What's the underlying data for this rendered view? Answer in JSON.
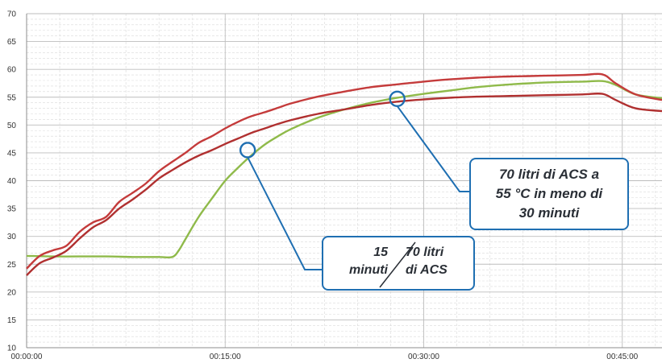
{
  "chart_data": {
    "type": "line",
    "title": "",
    "xlabel": "",
    "ylabel": "",
    "x_unit": "minutes",
    "xlim": [
      0,
      48
    ],
    "ylim": [
      10,
      70
    ],
    "yticks": [
      "10",
      "15",
      "20",
      "25",
      "30",
      "35",
      "40",
      "45",
      "50",
      "55",
      "60",
      "65",
      "70"
    ],
    "xticks": [
      {
        "label": "00:00:00",
        "value": 0
      },
      {
        "label": "00:15:00",
        "value": 15
      },
      {
        "label": "00:30:00",
        "value": 30
      },
      {
        "label": "00:45:00",
        "value": 45
      }
    ],
    "grid": true,
    "series": [
      {
        "color": "#c43b3b",
        "x": [
          0,
          1,
          2,
          3,
          4,
          5,
          6,
          7,
          8,
          9,
          10,
          11,
          12,
          13,
          14,
          15,
          16,
          17,
          18,
          19,
          20,
          22,
          24,
          26,
          28,
          30,
          32,
          34,
          36,
          38,
          40,
          42,
          43.5,
          44.5,
          46,
          48
        ],
        "y": [
          24.2,
          26.5,
          27.5,
          28.3,
          30.8,
          32.5,
          33.5,
          36.2,
          37.8,
          39.5,
          41.7,
          43.4,
          45,
          46.8,
          48,
          49.4,
          50.6,
          51.6,
          52.3,
          53.1,
          53.9,
          55.1,
          56,
          56.8,
          57.3,
          57.8,
          58.2,
          58.5,
          58.7,
          58.8,
          58.9,
          59.0,
          59.1,
          57.5,
          55.5,
          54.5
        ]
      },
      {
        "color": "#b03030",
        "x": [
          0,
          1,
          2,
          3,
          4,
          5,
          6,
          7,
          8,
          9,
          10,
          11,
          12,
          13,
          14,
          15,
          16,
          17,
          18,
          19,
          20,
          22,
          24,
          26,
          28,
          30,
          32,
          34,
          36,
          38,
          40,
          42,
          43.5,
          44.5,
          46,
          48
        ],
        "y": [
          23.0,
          25.2,
          26.2,
          27.4,
          29.6,
          31.6,
          32.9,
          35.0,
          36.6,
          38.4,
          40.4,
          41.9,
          43.3,
          44.5,
          45.5,
          46.6,
          47.6,
          48.6,
          49.4,
          50.2,
          50.9,
          52.0,
          52.8,
          53.6,
          54.2,
          54.6,
          54.9,
          55.1,
          55.2,
          55.3,
          55.4,
          55.5,
          55.6,
          54.5,
          53.0,
          52.5
        ]
      },
      {
        "color": "#8fba4a",
        "x": [
          0,
          2,
          4,
          6,
          8,
          10,
          11,
          11.5,
          12,
          13,
          14,
          15,
          16,
          17,
          18,
          19,
          20,
          22,
          24,
          26,
          28,
          30,
          32,
          34,
          36,
          38,
          40,
          42,
          43.5,
          44.5,
          46,
          48
        ],
        "y": [
          26.5,
          26.4,
          26.4,
          26.4,
          26.3,
          26.3,
          26.3,
          27.5,
          29.5,
          33.5,
          36.8,
          40,
          42.4,
          44.6,
          46.5,
          48,
          49.3,
          51.3,
          52.8,
          54,
          54.9,
          55.6,
          56.2,
          56.8,
          57.2,
          57.5,
          57.7,
          57.8,
          57.9,
          57.2,
          55.5,
          54.8
        ]
      }
    ],
    "annotations": [
      {
        "text_lines": [
          "70 litri di ACS a",
          "55 °C in meno di",
          "30 minuti"
        ],
        "x": 28,
        "y": 54.7
      },
      {
        "text_a": [
          "15",
          "minuti"
        ],
        "text_b": [
          "70 litri",
          "di ACS"
        ],
        "x": 16.7,
        "y": 45.5
      }
    ]
  },
  "colors": {
    "callout_border": "#1f6fb2",
    "grid_major": "#bdbdbd",
    "grid_minor": "#d9d9d9"
  }
}
